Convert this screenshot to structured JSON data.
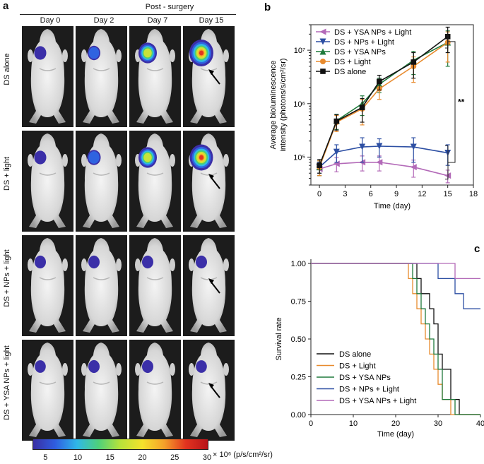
{
  "panel_a": {
    "letter": "a",
    "header": "Post - surgery",
    "days": [
      "Day 0",
      "Day 2",
      "Day 7",
      "Day 15"
    ],
    "rows": [
      "DS alone",
      "DS + light",
      "DS + NPs + light",
      "DS + YSA NPs + light"
    ],
    "signal_levels": [
      [
        0.15,
        0.2,
        0.6,
        1.0
      ],
      [
        0.15,
        0.25,
        0.6,
        0.95
      ],
      [
        0.1,
        0.1,
        0.1,
        0.1
      ],
      [
        0.08,
        0.1,
        0.1,
        0.08
      ]
    ],
    "arrow_in_row": [
      true,
      true,
      true,
      true
    ],
    "colorbar": {
      "ticks": [
        "5",
        "10",
        "15",
        "20",
        "25",
        "30"
      ],
      "unit": "× 10⁶ (p/s/cm²/sr)",
      "colors": [
        "#3a2fa3",
        "#2f5de0",
        "#2fb7e8",
        "#4ed07a",
        "#b9e23a",
        "#f4e22c",
        "#f5a12a",
        "#e2331f",
        "#b8141a"
      ]
    }
  },
  "chart_data": [
    {
      "panel": "b",
      "type": "line",
      "yscale": "log",
      "xlabel": "Time (day)",
      "ylabel_line1": "Average bioluminescence",
      "ylabel_line2": "intensity (photons/s/cm²/sr)",
      "xlim": [
        -1,
        18
      ],
      "xticks": [
        0,
        3,
        6,
        9,
        12,
        15,
        18
      ],
      "ylim": [
        30000,
        30000000
      ],
      "yticks": [
        100000,
        1000000,
        10000000
      ],
      "ytick_labels": [
        "10⁵",
        "10⁶",
        "10⁷"
      ],
      "x": [
        0,
        2,
        5,
        7,
        11,
        15
      ],
      "significance": "**",
      "series": [
        {
          "name": "DS + YSA NPs + Light",
          "color": "#b36ab8",
          "marker": "triangle-left",
          "values": [
            60000,
            75000,
            80000,
            80000,
            65000,
            45000
          ],
          "err": [
            15000,
            22000,
            25000,
            25000,
            23000,
            12000
          ]
        },
        {
          "name": "DS + NPs + Light",
          "color": "#2d4fa3",
          "marker": "triangle-down",
          "values": [
            65000,
            125000,
            155000,
            160000,
            155000,
            120000
          ],
          "err": [
            15000,
            45000,
            75000,
            60000,
            75000,
            50000
          ]
        },
        {
          "name": "DS + YSA NPs",
          "color": "#1f7a3c",
          "marker": "triangle-up",
          "values": [
            65000,
            480000,
            1000000,
            2300000,
            6500000,
            14000000
          ],
          "err": [
            20000,
            150000,
            400000,
            700000,
            3000000,
            9000000
          ]
        },
        {
          "name": "DS + Light",
          "color": "#e88b2e",
          "marker": "circle",
          "values": [
            65000,
            450000,
            800000,
            1900000,
            5000000,
            14000000
          ],
          "err": [
            20000,
            150000,
            400000,
            700000,
            2500000,
            8000000
          ]
        },
        {
          "name": "DS alone",
          "color": "#111111",
          "marker": "square",
          "values": [
            70000,
            470000,
            850000,
            2600000,
            6000000,
            18000000
          ],
          "err": [
            20000,
            150000,
            400000,
            800000,
            3000000,
            9000000
          ]
        }
      ]
    },
    {
      "panel": "c",
      "type": "line",
      "step": true,
      "xlabel": "Time (day)",
      "ylabel": "Survival rate",
      "xlim": [
        0,
        40
      ],
      "xticks": [
        0,
        10,
        20,
        30,
        40
      ],
      "ylim": [
        0,
        1.0
      ],
      "yticks": [
        0.0,
        0.25,
        0.5,
        0.75,
        1.0
      ],
      "ytick_labels": [
        "0.00",
        "0.25",
        "0.50",
        "0.75",
        "1.00"
      ],
      "series": [
        {
          "name": "DS alone",
          "color": "#111111",
          "points": [
            [
              0,
              1.0
            ],
            [
              25,
              1.0
            ],
            [
              25,
              0.9
            ],
            [
              26,
              0.9
            ],
            [
              26,
              0.8
            ],
            [
              28,
              0.8
            ],
            [
              28,
              0.7
            ],
            [
              29,
              0.7
            ],
            [
              29,
              0.6
            ],
            [
              30,
              0.6
            ],
            [
              30,
              0.4
            ],
            [
              31,
              0.4
            ],
            [
              31,
              0.3
            ],
            [
              33,
              0.3
            ],
            [
              33,
              0.1
            ],
            [
              35,
              0.1
            ],
            [
              35,
              0.0
            ],
            [
              40,
              0.0
            ]
          ]
        },
        {
          "name": "DS + Light",
          "color": "#e88b2e",
          "points": [
            [
              0,
              1.0
            ],
            [
              23,
              1.0
            ],
            [
              23,
              0.9
            ],
            [
              24,
              0.9
            ],
            [
              24,
              0.8
            ],
            [
              25,
              0.8
            ],
            [
              25,
              0.7
            ],
            [
              26,
              0.7
            ],
            [
              26,
              0.6
            ],
            [
              27,
              0.6
            ],
            [
              27,
              0.5
            ],
            [
              28,
              0.5
            ],
            [
              28,
              0.4
            ],
            [
              29,
              0.4
            ],
            [
              29,
              0.3
            ],
            [
              30,
              0.3
            ],
            [
              30,
              0.2
            ],
            [
              31,
              0.2
            ],
            [
              31,
              0.1
            ],
            [
              33,
              0.1
            ],
            [
              33,
              0.0
            ],
            [
              40,
              0.0
            ]
          ]
        },
        {
          "name": "DS + YSA NPs",
          "color": "#1f7a3c",
          "points": [
            [
              0,
              1.0
            ],
            [
              24,
              1.0
            ],
            [
              24,
              0.9
            ],
            [
              25,
              0.9
            ],
            [
              25,
              0.8
            ],
            [
              26,
              0.8
            ],
            [
              26,
              0.7
            ],
            [
              27,
              0.7
            ],
            [
              27,
              0.6
            ],
            [
              28,
              0.6
            ],
            [
              28,
              0.5
            ],
            [
              29,
              0.5
            ],
            [
              29,
              0.4
            ],
            [
              30,
              0.4
            ],
            [
              30,
              0.3
            ],
            [
              31,
              0.3
            ],
            [
              31,
              0.1
            ],
            [
              34,
              0.1
            ],
            [
              34,
              0.0
            ],
            [
              40,
              0.0
            ]
          ]
        },
        {
          "name": "DS + NPs + Light",
          "color": "#2d4fa3",
          "points": [
            [
              0,
              1.0
            ],
            [
              30,
              1.0
            ],
            [
              30,
              0.9
            ],
            [
              34,
              0.9
            ],
            [
              34,
              0.8
            ],
            [
              36,
              0.8
            ],
            [
              36,
              0.7
            ],
            [
              40,
              0.7
            ]
          ]
        },
        {
          "name": "DS + YSA NPs + Light",
          "color": "#b36ab8",
          "points": [
            [
              0,
              1.0
            ],
            [
              34,
              1.0
            ],
            [
              34,
              0.9
            ],
            [
              40,
              0.9
            ]
          ]
        }
      ],
      "legend_order": [
        "DS alone",
        "DS + Light",
        "DS + YSA NPs",
        "DS + NPs + Light",
        "DS + YSA NPs + Light"
      ]
    }
  ]
}
